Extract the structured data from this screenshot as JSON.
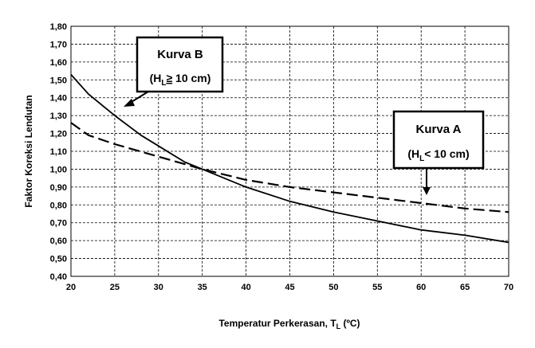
{
  "chart_data": {
    "type": "line",
    "xlabel": "Temperatur Perkerasan, T",
    "xlabel_sub": "L",
    "xlabel_unit": " (ºC)",
    "ylabel": "Faktor Koreksi Lendutan",
    "xlim": [
      20,
      70
    ],
    "ylim": [
      0.4,
      1.8
    ],
    "xticks": [
      "20",
      "25",
      "30",
      "35",
      "40",
      "45",
      "50",
      "55",
      "60",
      "65",
      "70"
    ],
    "yticks": [
      "0,40",
      "0,50",
      "0,60",
      "0,70",
      "0,80",
      "0,90",
      "1,00",
      "1,10",
      "1,20",
      "1,30",
      "1,40",
      "1,50",
      "1,60",
      "1,70",
      "1,80"
    ],
    "grid": true,
    "series": [
      {
        "name": "Kurva B",
        "condition": "≥ 10 cm",
        "style": "solid",
        "x": [
          20,
          22,
          25,
          28,
          30,
          33,
          35,
          38,
          40,
          45,
          50,
          55,
          60,
          65,
          70
        ],
        "y": [
          1.53,
          1.42,
          1.3,
          1.19,
          1.13,
          1.04,
          1.0,
          0.94,
          0.9,
          0.82,
          0.76,
          0.71,
          0.66,
          0.63,
          0.59
        ]
      },
      {
        "name": "Kurva A",
        "condition": "< 10 cm",
        "style": "dashed",
        "x": [
          20,
          22,
          25,
          30,
          35,
          40,
          45,
          50,
          55,
          60,
          65,
          70
        ],
        "y": [
          1.26,
          1.19,
          1.14,
          1.07,
          1.0,
          0.94,
          0.9,
          0.87,
          0.84,
          0.81,
          0.78,
          0.76
        ]
      }
    ],
    "callouts": {
      "b": {
        "title": "Kurva B",
        "prefix": "(H",
        "sub": "L",
        "rel": "≥",
        "suffix": " 10 cm)"
      },
      "a": {
        "title": "Kurva A",
        "prefix": "(H",
        "sub": "L",
        "rel": "<",
        "suffix": " 10 cm)"
      }
    }
  }
}
